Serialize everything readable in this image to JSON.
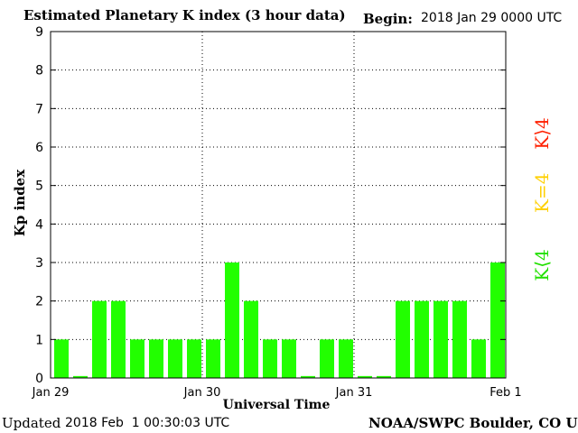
{
  "header": {
    "title": "Estimated Planetary K index (3 hour data)",
    "begin_label": "Begin:",
    "begin_value": "2018 Jan 29 0000 UTC"
  },
  "footer": {
    "updated_label": "Updated",
    "updated_value": "2018 Feb  1 00:30:03 UTC",
    "source": "NOAA/SWPC Boulder, CO USA"
  },
  "legend": {
    "high": {
      "label": "K⟩4",
      "color": "#ff2000"
    },
    "equal": {
      "label": "K=4",
      "color": "#ffd000"
    },
    "low": {
      "label": "K⟨4",
      "color": "#22e000"
    }
  },
  "chart_data": {
    "type": "bar",
    "title": "Estimated Planetary K index (3 hour data)",
    "xlabel": "Universal Time",
    "ylabel": "Kp index",
    "ylim": [
      0,
      9
    ],
    "yticks": [
      0,
      1,
      2,
      3,
      4,
      5,
      6,
      7,
      8,
      9
    ],
    "xticks": [
      "Jan 29",
      "Jan 30",
      "Jan 31",
      "Feb 1"
    ],
    "bar_color": "#22ff00",
    "grid": true,
    "series": [
      {
        "values": [
          1,
          0.05,
          2,
          2,
          1,
          1,
          1,
          1,
          1,
          3,
          2,
          1,
          1,
          0.05,
          1,
          1,
          0.05,
          0.05,
          2,
          2,
          2,
          2,
          1,
          3
        ]
      }
    ]
  }
}
